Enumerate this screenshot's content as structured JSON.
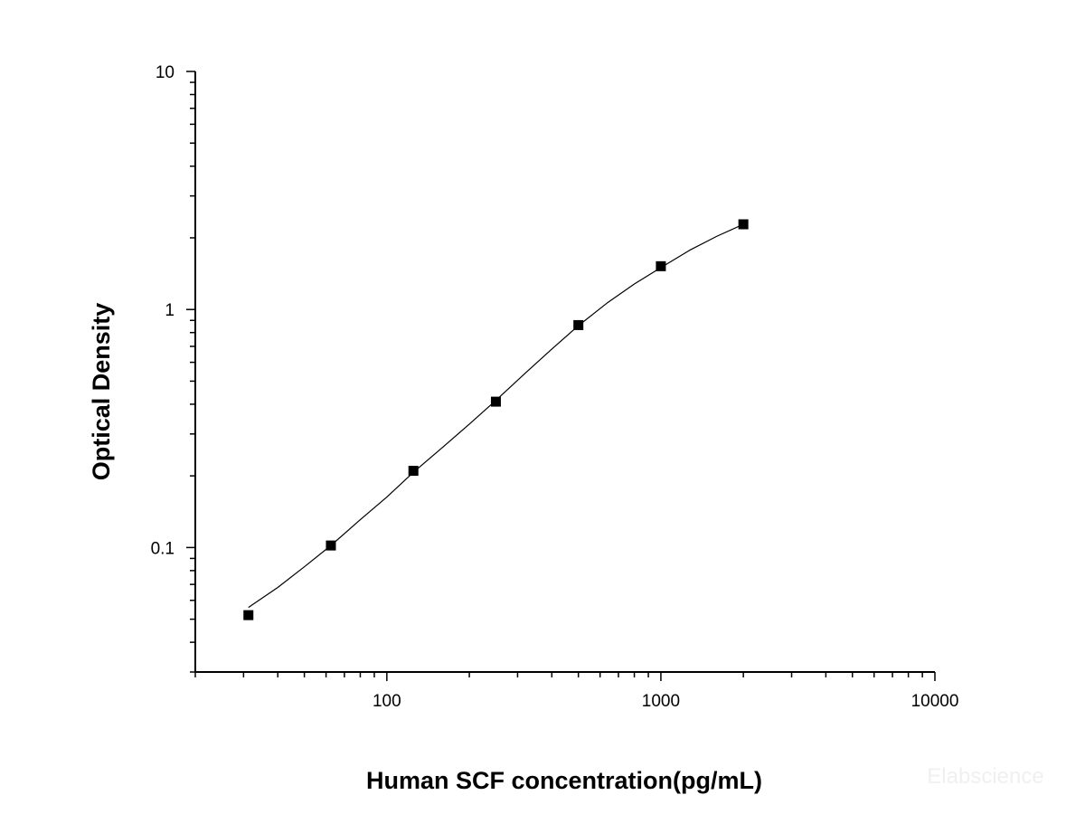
{
  "chart_data": {
    "type": "scatter",
    "title": "",
    "xlabel": "Human SCF concentration(pg/mL)",
    "ylabel": "Optical Density",
    "xscale": "log",
    "yscale": "log",
    "xlim": [
      20,
      10000
    ],
    "ylim": [
      0.03,
      10
    ],
    "x_ticks": [
      {
        "value": 100,
        "label": "100"
      },
      {
        "value": 1000,
        "label": "1000"
      },
      {
        "value": 10000,
        "label": "10000"
      }
    ],
    "y_ticks": [
      {
        "value": 0.1,
        "label": "0.1"
      },
      {
        "value": 1,
        "label": "1"
      },
      {
        "value": 10,
        "label": "10"
      }
    ],
    "grid": false,
    "legend": "none",
    "marker": "square",
    "fit_line": "smooth curve through points",
    "x": [
      31.25,
      62.5,
      125,
      250,
      500,
      1000,
      2000
    ],
    "y": [
      0.052,
      0.102,
      0.21,
      0.41,
      0.86,
      1.52,
      2.28
    ],
    "fit_x": [
      31.25,
      40,
      50,
      62.5,
      80,
      100,
      125,
      160,
      200,
      250,
      320,
      400,
      500,
      640,
      800,
      1000,
      1280,
      1600,
      2000
    ],
    "fit_y": [
      0.056,
      0.068,
      0.083,
      0.102,
      0.131,
      0.163,
      0.207,
      0.264,
      0.33,
      0.415,
      0.54,
      0.682,
      0.855,
      1.07,
      1.28,
      1.5,
      1.78,
      2.03,
      2.28
    ]
  },
  "watermark": "Elabscience"
}
